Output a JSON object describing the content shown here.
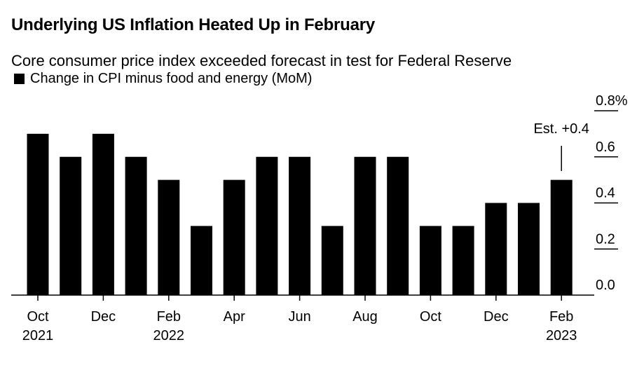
{
  "chart_data": {
    "type": "bar",
    "title": "Underlying US Inflation Heated Up in February",
    "subtitle": "Core consumer price index exceeded forecast in test for Federal Reserve",
    "legend": [
      {
        "label": "Change in CPI minus food and energy (MoM)",
        "color": "#000000"
      }
    ],
    "series": [
      {
        "name": "Change in CPI minus food and energy (MoM)",
        "color": "#000000",
        "values": [
          0.7,
          0.6,
          0.7,
          0.6,
          0.5,
          0.3,
          0.5,
          0.6,
          0.6,
          0.3,
          0.6,
          0.6,
          0.3,
          0.3,
          0.4,
          0.4,
          0.5
        ]
      }
    ],
    "categories": [
      "2021-10",
      "2021-11",
      "2021-12",
      "2022-01",
      "2022-02",
      "2022-03",
      "2022-04",
      "2022-05",
      "2022-06",
      "2022-07",
      "2022-08",
      "2022-09",
      "2022-10",
      "2022-11",
      "2022-12",
      "2023-01",
      "2023-02"
    ],
    "x_tick_labels": [
      {
        "index": 0,
        "month": "Oct",
        "year": "2021"
      },
      {
        "index": 2,
        "month": "Dec",
        "year": ""
      },
      {
        "index": 4,
        "month": "Feb",
        "year": "2022"
      },
      {
        "index": 6,
        "month": "Apr",
        "year": ""
      },
      {
        "index": 8,
        "month": "Jun",
        "year": ""
      },
      {
        "index": 10,
        "month": "Aug",
        "year": ""
      },
      {
        "index": 12,
        "month": "Oct",
        "year": ""
      },
      {
        "index": 14,
        "month": "Dec",
        "year": ""
      },
      {
        "index": 16,
        "month": "Feb",
        "year": "2023"
      }
    ],
    "y_ticks": [
      {
        "value": 0.0,
        "label": "0.0"
      },
      {
        "value": 0.2,
        "label": "0.2"
      },
      {
        "value": 0.4,
        "label": "0.4"
      },
      {
        "value": 0.6,
        "label": "0.6"
      },
      {
        "value": 0.8,
        "label": "0.8%"
      }
    ],
    "ylim": [
      0,
      0.8
    ],
    "y_axis_side": "right",
    "grid": false,
    "annotation": {
      "index": 16,
      "text": "Est. +0.4"
    }
  }
}
